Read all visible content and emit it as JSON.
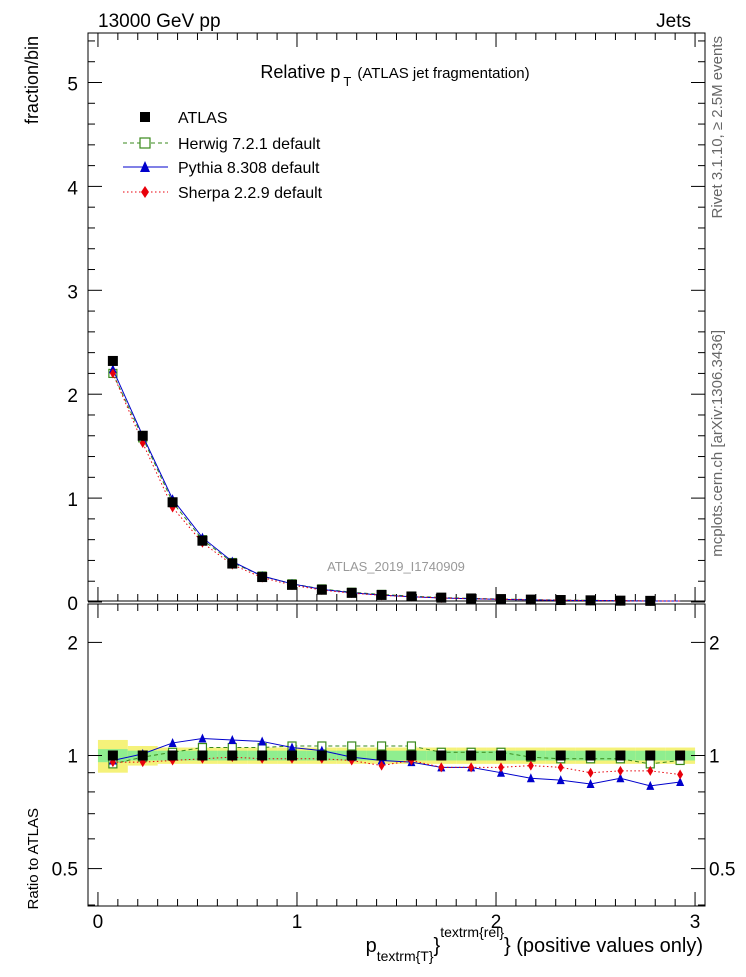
{
  "header": {
    "energy_label": "13000 GeV pp",
    "category_label": "Jets"
  },
  "side_texts": {
    "rivet": "Rivet 3.1.10, ≥ 2.5M events",
    "mcplots": "mcplots.cern.ch [arXiv:1306.3436]"
  },
  "chart_data": {
    "type": "scatter",
    "title": "Relative p_T (ATLAS jet fragmentation)",
    "title_main": "Relative p",
    "title_sub": "T",
    "title_tail": "(ATLAS jet fragmentation)",
    "analysis_label": "ATLAS_2019_I1740909",
    "ylabel": "fraction/bin",
    "ratio_ylabel": "Ratio to ATLAS",
    "xlabel": "p_textrm{T}^textrm{rel} (positive values only)",
    "xlabel_main": "p",
    "xlabel_sub": "textrm{T}",
    "xlabel_sup": "textrm{rel}",
    "xlabel_tail": "} (positive values only)",
    "xlim": [
      -0.05,
      3.05
    ],
    "ylim": [
      0,
      5.6
    ],
    "ratio_ylim": [
      0.35,
      2.3
    ],
    "x_ticks": [
      "0",
      "1",
      "2",
      "3"
    ],
    "y_ticks": [
      "0",
      "1",
      "2",
      "3",
      "4",
      "5"
    ],
    "ratio_y_ticks": [
      "0.5",
      "1",
      "2"
    ],
    "legend_position": "top-left",
    "x": [
      0.075,
      0.225,
      0.375,
      0.525,
      0.675,
      0.825,
      0.975,
      1.125,
      1.275,
      1.425,
      1.575,
      1.725,
      1.875,
      2.025,
      2.175,
      2.325,
      2.475,
      2.625,
      2.775,
      2.925
    ],
    "band_edges": [
      0.0,
      0.15,
      0.3,
      0.45,
      0.6,
      0.75,
      0.9,
      1.05,
      1.2,
      1.35,
      1.5,
      1.65,
      1.8,
      1.95,
      2.1,
      2.25,
      2.4,
      2.55,
      2.7,
      2.85,
      3.0
    ],
    "data_band_inner": [
      0.04,
      0.03,
      0.03,
      0.03,
      0.03,
      0.03,
      0.03,
      0.03,
      0.03,
      0.03,
      0.03,
      0.03,
      0.03,
      0.03,
      0.03,
      0.03,
      0.03,
      0.03,
      0.03,
      0.03
    ],
    "data_band_outer": [
      0.1,
      0.06,
      0.05,
      0.05,
      0.05,
      0.05,
      0.05,
      0.05,
      0.05,
      0.05,
      0.05,
      0.05,
      0.05,
      0.05,
      0.05,
      0.05,
      0.05,
      0.05,
      0.05,
      0.05
    ],
    "series": [
      {
        "name": "ATLAS",
        "color": "#000000",
        "marker": "square-filled",
        "line": "none",
        "values": [
          2.32,
          1.6,
          0.96,
          0.59,
          0.37,
          0.24,
          0.165,
          0.118,
          0.088,
          0.068,
          0.053,
          0.042,
          0.034,
          0.028,
          0.023,
          0.019,
          0.016,
          0.013,
          0.011,
          0.009
        ],
        "ratio": [
          1,
          1,
          1,
          1,
          1,
          1,
          1,
          1,
          1,
          1,
          1,
          1,
          1,
          1,
          1,
          1,
          1,
          1,
          1,
          1
        ]
      },
      {
        "name": "Herwig 7.2.1 default",
        "color": "#3a8a1c",
        "marker": "square-open",
        "line": "dashed",
        "values": [
          2.2,
          1.58,
          0.96,
          0.6,
          0.38,
          0.25,
          0.175,
          0.126,
          0.094,
          0.073,
          0.057,
          0.043,
          0.035,
          0.029,
          0.023,
          0.019,
          0.016,
          0.013,
          0.0105,
          0.0087
        ],
        "ratio": [
          0.95,
          0.99,
          1.02,
          1.05,
          1.05,
          1.05,
          1.06,
          1.06,
          1.06,
          1.06,
          1.06,
          1.02,
          1.02,
          1.02,
          0.99,
          0.98,
          0.98,
          0.98,
          0.95,
          0.97
        ]
      },
      {
        "name": "Pythia 8.308 default",
        "color": "#0000cc",
        "marker": "triangle-filled",
        "line": "solid",
        "values": [
          2.24,
          1.6,
          0.99,
          0.62,
          0.39,
          0.25,
          0.175,
          0.121,
          0.089,
          0.066,
          0.051,
          0.039,
          0.031,
          0.025,
          0.02,
          0.016,
          0.014,
          0.0115,
          0.0093,
          0.0077
        ],
        "ratio": [
          0.97,
          1.01,
          1.08,
          1.11,
          1.1,
          1.09,
          1.05,
          1.03,
          0.99,
          0.97,
          0.96,
          0.93,
          0.93,
          0.9,
          0.87,
          0.86,
          0.84,
          0.87,
          0.83,
          0.85
        ]
      },
      {
        "name": "Sherpa 2.2.9 default",
        "color": "#e8000b",
        "marker": "diamond-filled",
        "line": "dotted",
        "values": [
          2.2,
          1.53,
          0.91,
          0.57,
          0.36,
          0.235,
          0.163,
          0.115,
          0.085,
          0.064,
          0.051,
          0.039,
          0.032,
          0.026,
          0.021,
          0.0175,
          0.014,
          0.012,
          0.01,
          0.008
        ],
        "ratio": [
          0.96,
          0.96,
          0.97,
          0.98,
          0.99,
          0.98,
          0.98,
          0.98,
          0.97,
          0.94,
          0.97,
          0.93,
          0.93,
          0.93,
          0.94,
          0.93,
          0.9,
          0.91,
          0.91,
          0.89
        ]
      }
    ]
  }
}
